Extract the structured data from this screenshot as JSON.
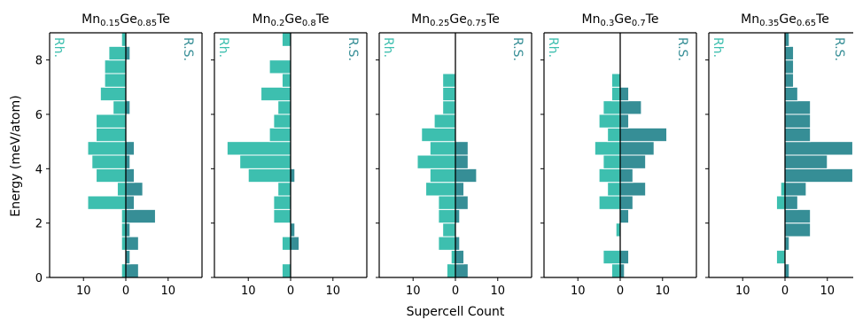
{
  "chart_data": {
    "type": "bar",
    "orientation": "horizontal-back-to-back",
    "xlabel": "Supercell Count",
    "ylabel": "Energy (meV/atom)",
    "ylim": [
      0,
      9
    ],
    "xlim": [
      -18,
      18
    ],
    "yticks": [
      0,
      2,
      4,
      6,
      8
    ],
    "xtick_values": [
      -10,
      0,
      10
    ],
    "xtick_labels": [
      "10",
      "0",
      "10"
    ],
    "bin_width": 0.5,
    "bin_centers": [
      0.25,
      0.75,
      1.25,
      1.75,
      2.25,
      2.75,
      3.25,
      3.75,
      4.25,
      4.75,
      5.25,
      5.75,
      6.25,
      6.75,
      7.25,
      7.75,
      8.25,
      8.75
    ],
    "colors": {
      "rh": "#3dbfaf",
      "rs": "#368e96",
      "zero_line": "#000000"
    },
    "panels": [
      {
        "title_base": "Mn",
        "title_sub1": "0.15",
        "title_mid": "Ge",
        "title_sub2": "0.85",
        "title_end": "Te",
        "rh_label": "Rh.",
        "rs_label": "R.S.",
        "rh": [
          1,
          0,
          1,
          1,
          1,
          9,
          2,
          7,
          8,
          9,
          7,
          7,
          3,
          6,
          5,
          5,
          4,
          1
        ],
        "rs": [
          3,
          1,
          3,
          1,
          7,
          2,
          4,
          2,
          1,
          2,
          0,
          0,
          1,
          0,
          0,
          0,
          1,
          0
        ]
      },
      {
        "title_base": "Mn",
        "title_sub1": "0.2",
        "title_mid": "Ge",
        "title_sub2": "0.8",
        "title_end": "Te",
        "rh_label": "Rh.",
        "rs_label": "R.S.",
        "rh": [
          2,
          0,
          2,
          0,
          4,
          4,
          3,
          10,
          12,
          15,
          5,
          4,
          3,
          7,
          2,
          5,
          0,
          2
        ],
        "rs": [
          0,
          0,
          2,
          1,
          0,
          0,
          0,
          1,
          0,
          0,
          0,
          0,
          0,
          0,
          0,
          0,
          0,
          0
        ]
      },
      {
        "title_base": "Mn",
        "title_sub1": "0.25",
        "title_mid": "Ge",
        "title_sub2": "0.75",
        "title_end": "Te",
        "rh_label": "Rh.",
        "rs_label": "R.S.",
        "rh": [
          2,
          1,
          4,
          3,
          4,
          4,
          7,
          6,
          9,
          6,
          8,
          5,
          3,
          3,
          3,
          0,
          0,
          0
        ],
        "rs": [
          3,
          2,
          1,
          0,
          1,
          3,
          2,
          5,
          3,
          3,
          0,
          0,
          0,
          0,
          0,
          0,
          0,
          0
        ]
      },
      {
        "title_base": "Mn",
        "title_sub1": "0.3",
        "title_mid": "Ge",
        "title_sub2": "0.7",
        "title_end": "Te",
        "rh_label": "Rh.",
        "rs_label": "R.S.",
        "rh": [
          2,
          4,
          0,
          1,
          0,
          5,
          3,
          5,
          4,
          6,
          3,
          5,
          4,
          2,
          2,
          0,
          0,
          0
        ],
        "rs": [
          1,
          2,
          0,
          0,
          2,
          3,
          6,
          3,
          6,
          8,
          11,
          2,
          5,
          2,
          0,
          0,
          0,
          0
        ]
      },
      {
        "title_base": "Mn",
        "title_sub1": "0.35",
        "title_mid": "Ge",
        "title_sub2": "0.65",
        "title_end": "Te",
        "rh_label": "Rh.",
        "rs_label": "R.S.",
        "rh": [
          0,
          2,
          0,
          0,
          0,
          2,
          1,
          0,
          0,
          0,
          0,
          0,
          0,
          0,
          0,
          0,
          0,
          0
        ],
        "rs": [
          1,
          0,
          1,
          6,
          6,
          3,
          5,
          16,
          10,
          16,
          6,
          6,
          6,
          3,
          2,
          2,
          2,
          1
        ]
      }
    ]
  }
}
